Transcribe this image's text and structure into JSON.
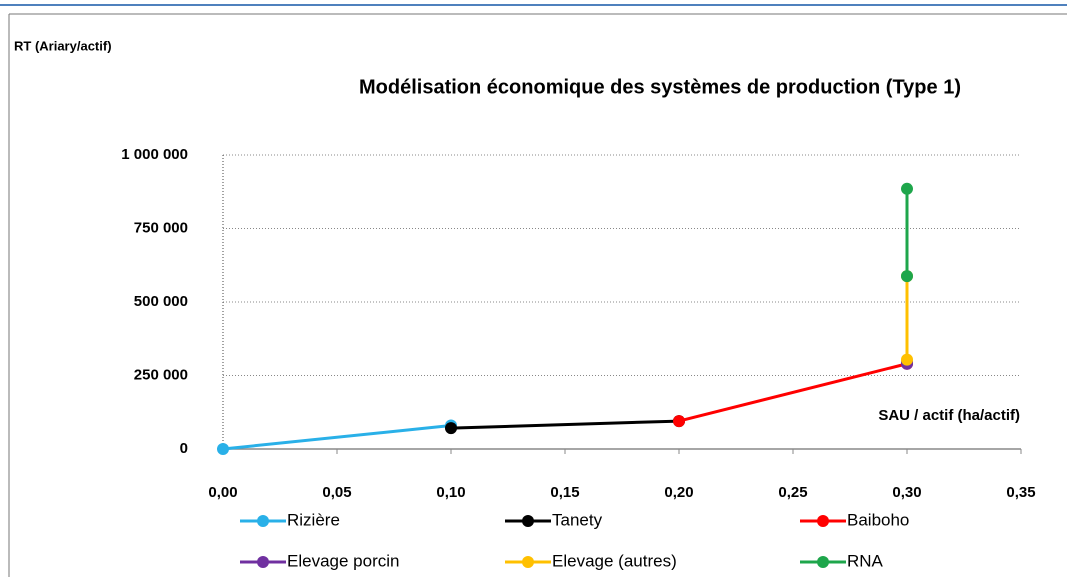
{
  "chart_data": {
    "type": "line",
    "title": "Modélisation économique des systèmes de production (Type 1)",
    "y_label": "RT (Ariary/actif)",
    "x_label": "SAU / actif (ha/actif)",
    "xlim": [
      0,
      0.35
    ],
    "xticks": [
      {
        "value": 0,
        "label": "0,00"
      },
      {
        "value": 0.05,
        "label": "0,05"
      },
      {
        "value": 0.1,
        "label": "0,10"
      },
      {
        "value": 0.15,
        "label": "0,15"
      },
      {
        "value": 0.2,
        "label": "0,20"
      },
      {
        "value": 0.25,
        "label": "0,25"
      },
      {
        "value": 0.3,
        "label": "0,30"
      },
      {
        "value": 0.35,
        "label": "0,35"
      }
    ],
    "ylim": [
      0,
      1000000
    ],
    "yticks": [
      0,
      {
        "value": 250000,
        "label": "250 000"
      },
      {
        "value": 500000,
        "label": "500 000"
      },
      {
        "value": 750000,
        "label": "750 000"
      },
      {
        "value": 1000000,
        "label": "1 000 000"
      }
    ],
    "grid": true,
    "legend": "bottom",
    "series": [
      {
        "name": "Rizière",
        "color": "#29b0e8",
        "x": [
          0,
          0.1
        ],
        "values": [
          0,
          80000
        ]
      },
      {
        "name": "Tanety",
        "color": "#000000",
        "x": [
          0.1,
          0.2
        ],
        "values": [
          71000,
          95000
        ]
      },
      {
        "name": "Baiboho",
        "color": "#ff0000",
        "x": [
          0.2,
          0.3
        ],
        "values": [
          95000,
          290000
        ]
      },
      {
        "name": "Elevage porcin",
        "color": "#7030a0",
        "x": [
          0.3,
          0.3
        ],
        "values": [
          290000,
          295000
        ]
      },
      {
        "name": "Elevage (autres)",
        "color": "#ffc000",
        "x": [
          0.3,
          0.3
        ],
        "values": [
          304000,
          588000
        ]
      },
      {
        "name": "RNA",
        "color": "#1ea64b",
        "x": [
          0.3,
          0.3
        ],
        "values": [
          588000,
          885000
        ]
      }
    ]
  }
}
